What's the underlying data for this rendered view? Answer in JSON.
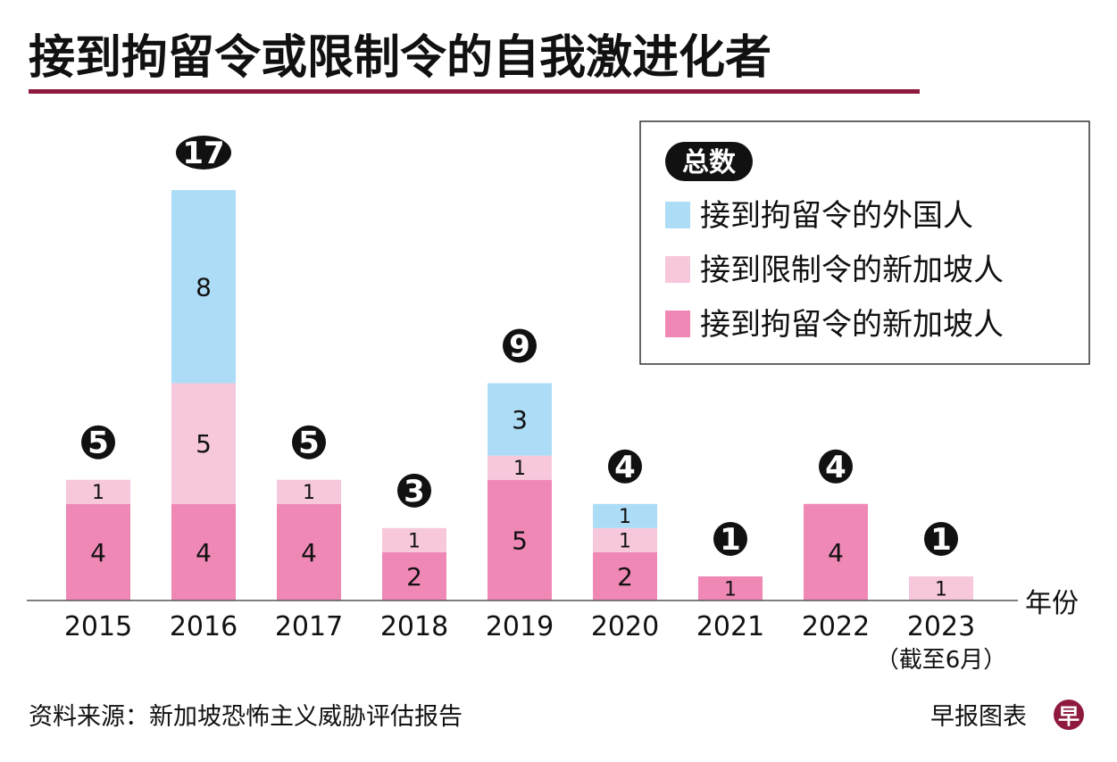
{
  "chart_data": {
    "type": "bar",
    "stacked": true,
    "title": "接到拘留令或限制令的自我激进化者",
    "xlabel": "年份",
    "categories": [
      "2015",
      "2016",
      "2017",
      "2018",
      "2019",
      "2020",
      "2021",
      "2022",
      "2023"
    ],
    "category_note": {
      "2023": "（截至6月）"
    },
    "series": [
      {
        "name": "接到拘留令的新加坡人",
        "color": "#ef88b5",
        "values": [
          4,
          4,
          4,
          2,
          5,
          2,
          1,
          4,
          0
        ]
      },
      {
        "name": "接到限制令的新加坡人",
        "color": "#f7c8dc",
        "values": [
          1,
          5,
          1,
          1,
          1,
          1,
          0,
          0,
          1
        ]
      },
      {
        "name": "接到拘留令的外国人",
        "color": "#acdcf6",
        "values": [
          0,
          8,
          0,
          0,
          3,
          1,
          0,
          0,
          0
        ]
      }
    ],
    "totals": [
      5,
      17,
      5,
      3,
      9,
      4,
      1,
      4,
      1
    ],
    "legend_title": "总数",
    "legend_position": "top-right",
    "grid": false,
    "ylim": [
      0,
      17
    ]
  },
  "source": "资料来源：新加坡恐怖主义威胁评估报告",
  "credit": "早报图表",
  "logo_text": "早",
  "colors": {
    "accent": "#8e1a3e"
  }
}
